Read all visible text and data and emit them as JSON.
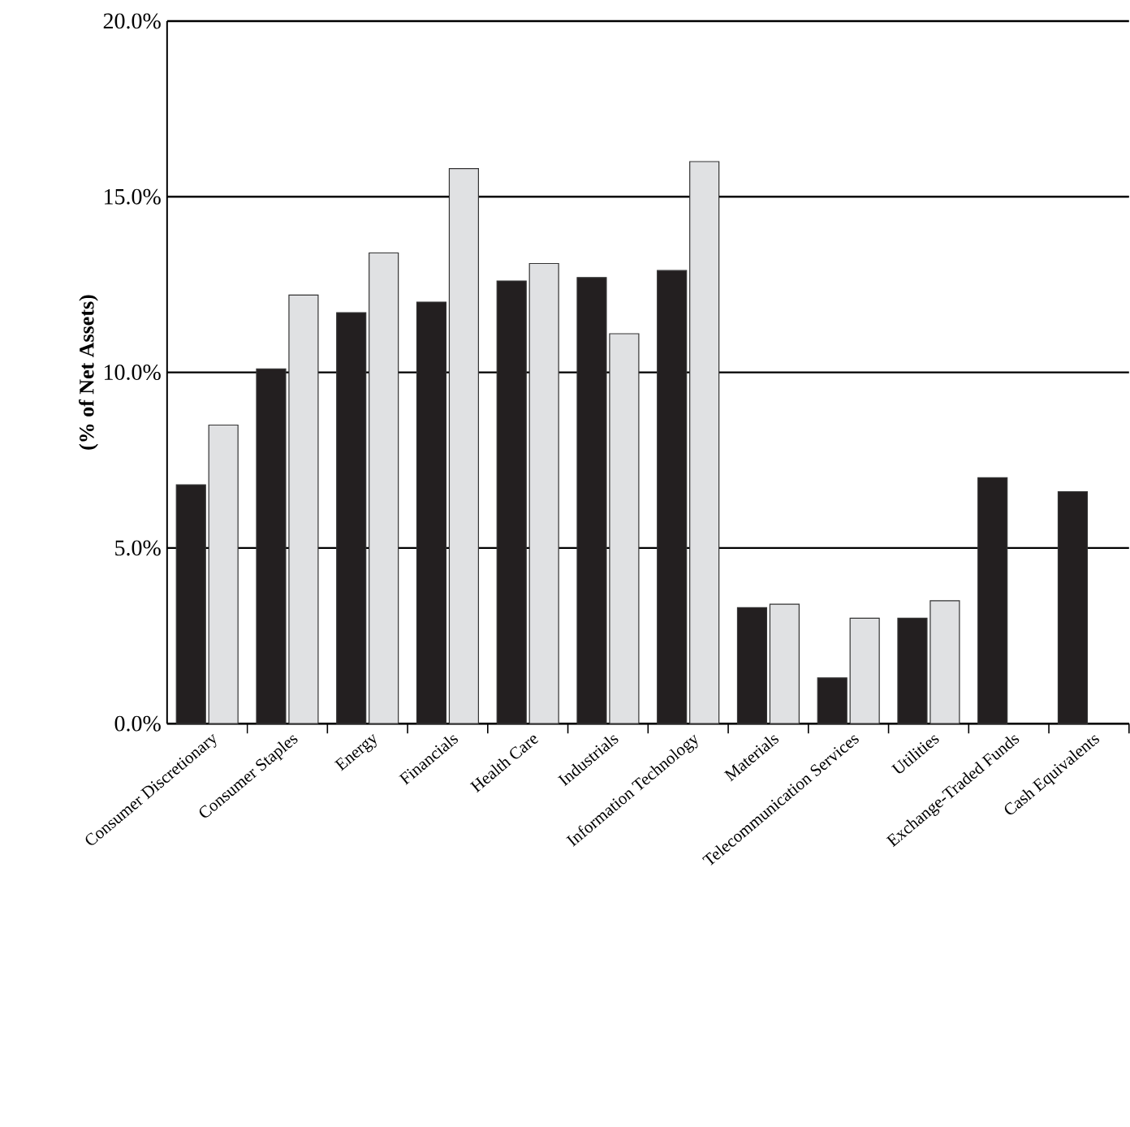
{
  "chart_data": {
    "type": "bar",
    "ylabel": "(% of Net Assets)",
    "categories": [
      "Consumer Discretionary",
      "Consumer Staples",
      "Energy",
      "Financials",
      "Health Care",
      "Industrials",
      "Information Technology",
      "Materials",
      "Telecommunication Services",
      "Utilities",
      "Exchange-Traded Funds",
      "Cash Equivalents"
    ],
    "series": [
      {
        "color": "#231f20",
        "values": [
          6.8,
          10.1,
          11.7,
          12.0,
          12.6,
          12.7,
          12.9,
          3.3,
          1.3,
          3.0,
          7.0,
          6.6
        ]
      },
      {
        "color": "#e0e1e3",
        "values": [
          8.5,
          12.2,
          13.4,
          15.8,
          13.1,
          11.1,
          16.0,
          3.4,
          3.0,
          3.5,
          null,
          null
        ]
      }
    ],
    "ylim": [
      0,
      20
    ],
    "yticks": [
      {
        "value": 0,
        "label": "0.0%"
      },
      {
        "value": 5,
        "label": "5.0%"
      },
      {
        "value": 10,
        "label": "10.0%"
      },
      {
        "value": 15,
        "label": "15.0%"
      },
      {
        "value": 20,
        "label": "20.0%"
      }
    ],
    "grid": "y"
  }
}
